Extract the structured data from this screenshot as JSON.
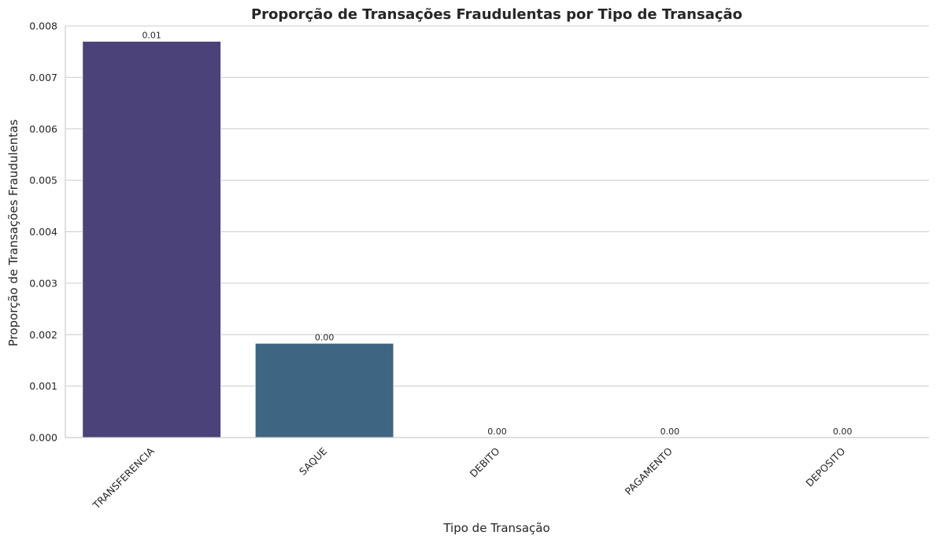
{
  "chart_data": {
    "type": "bar",
    "title": "Proporção de Transações Fraudulentas por Tipo de Transação",
    "xlabel": "Tipo de Transação",
    "ylabel": "Proporção de Transações Fraudulentas",
    "categories": [
      "TRANSFERENCIA",
      "SAQUE",
      "DEBITO",
      "PAGAMENTO",
      "DEPOSITO"
    ],
    "values": [
      0.0077,
      0.00183,
      0.0,
      0.0,
      0.0
    ],
    "data_labels": [
      "0.01",
      "0.00",
      "0.00",
      "0.00",
      "0.00"
    ],
    "colors": [
      "#4a4278",
      "#3e6682",
      "#2b8c8c",
      "#3bb07c",
      "#79c95a"
    ],
    "ylim": [
      0,
      0.008
    ],
    "yticks": [
      "0.000",
      "0.001",
      "0.002",
      "0.003",
      "0.004",
      "0.005",
      "0.006",
      "0.007",
      "0.008"
    ],
    "grid": "horizontal",
    "legend": "none"
  }
}
